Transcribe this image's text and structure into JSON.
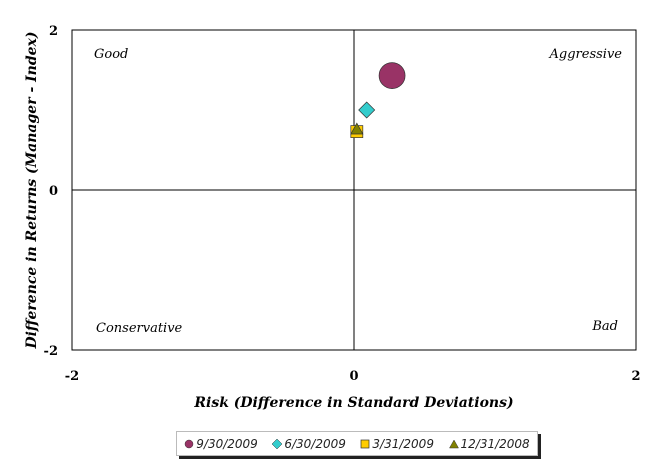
{
  "chart_data": {
    "type": "scatter",
    "xlabel": "Risk (Difference in Standard Deviations)",
    "ylabel": "Difference in Returns (Manager - Index)",
    "xlim": [
      -2,
      2
    ],
    "ylim": [
      -2,
      2
    ],
    "xticks": [
      "-2",
      "0",
      "2"
    ],
    "yticks": [
      "2",
      "0",
      "-2"
    ],
    "quadrant_labels": {
      "top_left": "Good",
      "top_right": "Aggressive",
      "bottom_left": "Conservative",
      "bottom_right": "Bad"
    },
    "legend_position": "bottom",
    "series": [
      {
        "name": "9/30/2009",
        "x": 0.27,
        "y": 1.43,
        "marker": "circle",
        "color": "#993366",
        "size": "large"
      },
      {
        "name": "6/30/2009",
        "x": 0.09,
        "y": 1.0,
        "marker": "diamond",
        "color": "#33CCCC",
        "size": "medium"
      },
      {
        "name": "3/31/2009",
        "x": 0.02,
        "y": 0.73,
        "marker": "square",
        "color": "#FFCC00",
        "size": "small"
      },
      {
        "name": "12/31/2008",
        "x": 0.02,
        "y": 0.76,
        "marker": "triangle",
        "color": "#808000",
        "size": "small"
      }
    ]
  }
}
